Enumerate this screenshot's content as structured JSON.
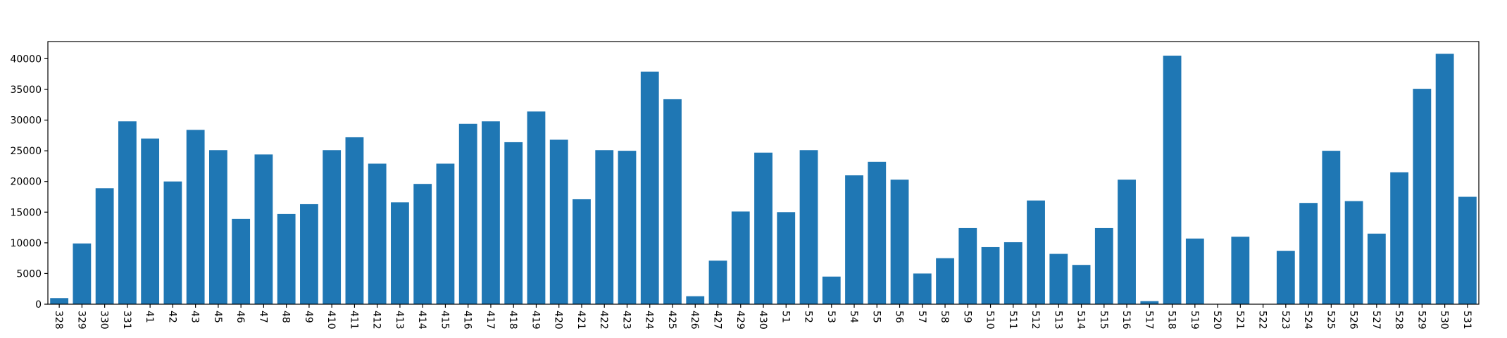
{
  "chart_data": {
    "type": "bar",
    "title": "",
    "xlabel": "",
    "ylabel": "",
    "bar_color": "#1f77b4",
    "ylim": [
      0,
      42800
    ],
    "yticks": [
      0,
      5000,
      10000,
      15000,
      20000,
      25000,
      30000,
      35000,
      40000
    ],
    "ytick_labels": [
      "0",
      "5000",
      "10000",
      "15000",
      "20000",
      "25000",
      "30000",
      "35000",
      "40000"
    ],
    "grid": false,
    "legend": false,
    "x_tick_rotation": "vertical",
    "categories": [
      "328",
      "329",
      "330",
      "331",
      "41",
      "42",
      "43",
      "45",
      "46",
      "47",
      "48",
      "49",
      "410",
      "411",
      "412",
      "413",
      "414",
      "415",
      "416",
      "417",
      "418",
      "419",
      "420",
      "421",
      "422",
      "423",
      "424",
      "425",
      "426",
      "427",
      "429",
      "430",
      "51",
      "52",
      "53",
      "54",
      "55",
      "56",
      "57",
      "58",
      "59",
      "510",
      "511",
      "512",
      "513",
      "514",
      "515",
      "516",
      "517",
      "518",
      "519",
      "520",
      "521",
      "522",
      "523",
      "524",
      "525",
      "526",
      "527",
      "528",
      "529",
      "530",
      "531"
    ],
    "values": [
      1000,
      9900,
      18900,
      29800,
      27000,
      20000,
      28400,
      25100,
      13900,
      24400,
      14700,
      16300,
      25100,
      27200,
      22900,
      16600,
      19600,
      22900,
      29400,
      29800,
      26400,
      31400,
      26800,
      17100,
      25100,
      25000,
      37900,
      33400,
      1300,
      7100,
      15100,
      24700,
      15000,
      25100,
      4500,
      21000,
      23200,
      20300,
      5000,
      7500,
      12400,
      9300,
      10100,
      16900,
      8200,
      6400,
      12400,
      20300,
      500,
      40500,
      10700,
      0,
      11000,
      0,
      8700,
      16500,
      25000,
      16800,
      11500,
      21500,
      35100,
      40800,
      17500
    ]
  }
}
